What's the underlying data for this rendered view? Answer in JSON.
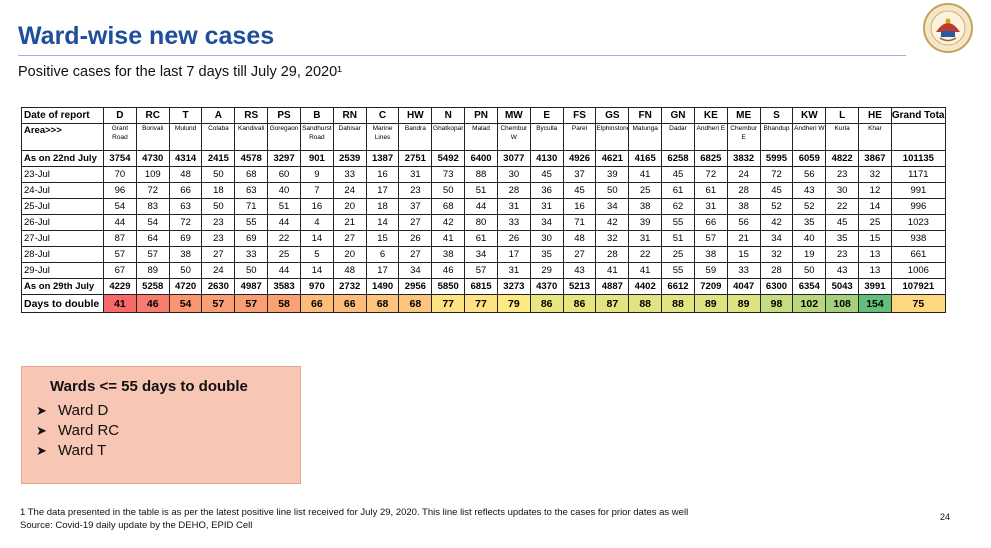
{
  "title": "Ward-wise new cases",
  "subtitle": "Positive cases for the last 7 days till July 29, 2020¹",
  "logo_icon": "municipal-corporation-seal",
  "table": {
    "header_label": "Date of report",
    "area_label": "Area>>>",
    "columns": [
      "D",
      "RC",
      "T",
      "A",
      "RS",
      "PS",
      "B",
      "RN",
      "C",
      "HW",
      "N",
      "PN",
      "MW",
      "E",
      "FS",
      "GS",
      "FN",
      "GN",
      "KE",
      "ME",
      "S",
      "KW",
      "L",
      "HE",
      "Grand Total"
    ],
    "areas": [
      "Grant Road",
      "Borivali",
      "Mulund",
      "Colaba",
      "Kandivali",
      "Goregaon",
      "Sandhurst Road",
      "Dahisar",
      "Marine Lines",
      "Bandra",
      "Ghatkopar",
      "Malad",
      "Chembur W",
      "Byculla",
      "Parel",
      "Elphinstone",
      "Matunga",
      "Dadar",
      "Andheri E",
      "Chembur E",
      "Bhandup",
      "Andheri W",
      "Kurla",
      "Khar",
      ""
    ],
    "rows": [
      {
        "label": "As on 22nd July",
        "bold": true,
        "values": [
          "3754",
          "4730",
          "4314",
          "2415",
          "4578",
          "3297",
          "901",
          "2539",
          "1387",
          "2751",
          "5492",
          "6400",
          "3077",
          "4130",
          "4926",
          "4621",
          "4165",
          "6258",
          "6825",
          "3832",
          "5995",
          "6059",
          "4822",
          "3867",
          "101135"
        ]
      },
      {
        "label": "23-Jul",
        "bold": false,
        "values": [
          "70",
          "109",
          "48",
          "50",
          "68",
          "60",
          "9",
          "33",
          "16",
          "31",
          "73",
          "88",
          "30",
          "45",
          "37",
          "39",
          "41",
          "45",
          "72",
          "24",
          "72",
          "56",
          "23",
          "32",
          "1171"
        ]
      },
      {
        "label": "24-Jul",
        "bold": false,
        "values": [
          "96",
          "72",
          "66",
          "18",
          "63",
          "40",
          "7",
          "24",
          "17",
          "23",
          "50",
          "51",
          "28",
          "36",
          "45",
          "50",
          "25",
          "61",
          "61",
          "28",
          "45",
          "43",
          "30",
          "12",
          "991"
        ]
      },
      {
        "label": "25-Jul",
        "bold": false,
        "values": [
          "54",
          "83",
          "63",
          "50",
          "71",
          "51",
          "16",
          "20",
          "18",
          "37",
          "68",
          "44",
          "31",
          "31",
          "16",
          "34",
          "38",
          "62",
          "31",
          "38",
          "52",
          "52",
          "22",
          "14",
          "996"
        ]
      },
      {
        "label": "26-Jul",
        "bold": false,
        "values": [
          "44",
          "54",
          "72",
          "23",
          "55",
          "44",
          "4",
          "21",
          "14",
          "27",
          "42",
          "80",
          "33",
          "34",
          "71",
          "42",
          "39",
          "55",
          "66",
          "56",
          "42",
          "35",
          "45",
          "25",
          "1023"
        ]
      },
      {
        "label": "27-Jul",
        "bold": false,
        "values": [
          "87",
          "64",
          "69",
          "23",
          "69",
          "22",
          "14",
          "27",
          "15",
          "26",
          "41",
          "61",
          "26",
          "30",
          "48",
          "32",
          "31",
          "51",
          "57",
          "21",
          "34",
          "40",
          "35",
          "15",
          "938"
        ]
      },
      {
        "label": "28-Jul",
        "bold": false,
        "values": [
          "57",
          "57",
          "38",
          "27",
          "33",
          "25",
          "5",
          "20",
          "6",
          "27",
          "38",
          "34",
          "17",
          "35",
          "27",
          "28",
          "22",
          "25",
          "38",
          "15",
          "32",
          "19",
          "23",
          "13",
          "661"
        ]
      },
      {
        "label": "29-Jul",
        "bold": false,
        "values": [
          "67",
          "89",
          "50",
          "24",
          "50",
          "44",
          "14",
          "48",
          "17",
          "34",
          "46",
          "57",
          "31",
          "29",
          "43",
          "41",
          "41",
          "55",
          "59",
          "33",
          "28",
          "50",
          "43",
          "13",
          "1006"
        ]
      },
      {
        "label": "As on 29th July",
        "bold": true,
        "values": [
          "4229",
          "5258",
          "4720",
          "2630",
          "4987",
          "3583",
          "970",
          "2732",
          "1490",
          "2956",
          "5850",
          "6815",
          "3273",
          "4370",
          "5213",
          "4887",
          "4402",
          "6612",
          "7209",
          "4047",
          "6300",
          "6354",
          "5043",
          "3991",
          "107921"
        ]
      }
    ],
    "doubling": {
      "label": "Days to double",
      "values": [
        "41",
        "46",
        "54",
        "57",
        "57",
        "58",
        "66",
        "66",
        "68",
        "68",
        "77",
        "77",
        "79",
        "86",
        "86",
        "87",
        "88",
        "88",
        "89",
        "89",
        "98",
        "102",
        "108",
        "154",
        "75"
      ],
      "colors": [
        "#f8696b",
        "#f97b6e",
        "#fa9572",
        "#fa9f73",
        "#fa9f73",
        "#fba275",
        "#fcbd7b",
        "#fcbd7b",
        "#fdc47d",
        "#fdc47d",
        "#ffe283",
        "#ffe283",
        "#fee983",
        "#e8e583",
        "#e8e583",
        "#e5e482",
        "#e2e382",
        "#e2e382",
        "#dfe282",
        "#dfe282",
        "#c7db80",
        "#b8d77f",
        "#a5d17e",
        "#63be7b",
        "#fed880"
      ]
    },
    "header_bg": "#ffffff"
  },
  "callout": {
    "title": "Wards <= 55 days to double",
    "bullet_icon": "arrow-bullet-icon",
    "items": [
      "Ward D",
      "Ward RC",
      "Ward T"
    ],
    "bg": "#f7c6b4"
  },
  "footnote": {
    "line1": "1 The data presented in the table is as per the latest positive line list received for July 29, 2020. This line list reflects updates to the cases for prior dates as well",
    "line2": "Source: Covid-19 daily update by the DEHO, EPID Cell"
  },
  "page_number": "24"
}
